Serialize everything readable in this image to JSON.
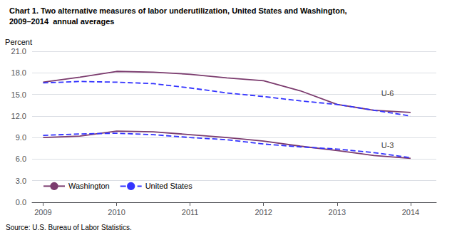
{
  "chart_data": {
    "type": "line",
    "title": "Chart 1. Two alternative measures of labor underutilization, United States and Washington,",
    "subtitle": "2009–2014  annual averages",
    "ylabel": "Percent",
    "source": "Source: U.S. Bureau of Labor Statistics.",
    "x": [
      2009,
      2009.5,
      2010,
      2010.5,
      2011,
      2011.5,
      2012,
      2012.5,
      2013,
      2013.5,
      2014
    ],
    "series": [
      {
        "name": "Washington",
        "color": "#7B3B6E",
        "line_style": "solid",
        "values": [
          16.7,
          17.4,
          18.2,
          18.1,
          17.8,
          17.3,
          16.9,
          15.5,
          13.6,
          12.8,
          12.5
        ]
      },
      {
        "name": "United States",
        "color": "#3333FF",
        "line_style": "dashed",
        "values": [
          16.6,
          16.8,
          16.7,
          16.5,
          15.9,
          15.2,
          14.7,
          14.1,
          13.6,
          12.8,
          12.0
        ]
      },
      {
        "name": "Washington",
        "color": "#7B3B6E",
        "line_style": "solid",
        "values": [
          9.0,
          9.2,
          9.9,
          9.8,
          9.4,
          9.0,
          8.5,
          7.8,
          7.2,
          6.5,
          6.1
        ]
      },
      {
        "name": "United States",
        "color": "#3333FF",
        "line_style": "dashed",
        "values": [
          9.3,
          9.5,
          9.6,
          9.4,
          9.0,
          8.7,
          8.1,
          7.7,
          7.4,
          6.9,
          6.2
        ]
      }
    ],
    "annotations": [
      {
        "text": "U-6",
        "x": 2013.6,
        "y": 15.2
      },
      {
        "text": "U-3",
        "x": 2013.6,
        "y": 7.9
      }
    ],
    "xlim": [
      2008.85,
      2014.35
    ],
    "xticks": [
      2009,
      2010,
      2011,
      2012,
      2013,
      2014
    ],
    "ylim": [
      0.0,
      21.0
    ],
    "yticks": [
      {
        "value": 0,
        "label": "0.0"
      },
      {
        "value": 3,
        "label": "3.0"
      },
      {
        "value": 6,
        "label": "6.0"
      },
      {
        "value": 9,
        "label": "9.0"
      },
      {
        "value": 12,
        "label": "12.0"
      },
      {
        "value": 15,
        "label": "15.0"
      },
      {
        "value": 18,
        "label": "18.0"
      },
      {
        "value": 21,
        "label": "21.0"
      }
    ],
    "grid": true,
    "legend": "lower left"
  }
}
